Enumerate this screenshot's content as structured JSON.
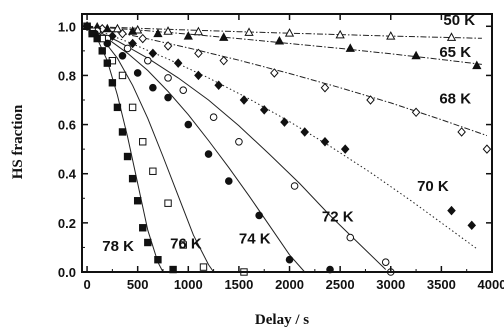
{
  "chart_data": {
    "type": "scatter",
    "title": "",
    "xlabel": "Delay / s",
    "ylabel": "HS fraction",
    "xlim": [
      -50,
      4000
    ],
    "ylim": [
      0.0,
      1.05
    ],
    "x_ticks": [
      "0",
      "500",
      "1000",
      "1500",
      "2000",
      "2500",
      "3000",
      "3500",
      "4000"
    ],
    "y_ticks": [
      "0.0",
      "0.2",
      "0.4",
      "0.6",
      "0.8",
      "1.0"
    ],
    "grid": false,
    "legend": "none",
    "series": [
      {
        "name": "50 K",
        "marker": "open-triangle",
        "line": "dashdot",
        "points": [
          [
            0,
            1.0
          ],
          [
            100,
            0.997
          ],
          [
            300,
            0.99
          ],
          [
            500,
            0.985
          ],
          [
            800,
            0.98
          ],
          [
            1100,
            0.978
          ],
          [
            1600,
            0.975
          ],
          [
            2000,
            0.972
          ],
          [
            2500,
            0.965
          ],
          [
            3000,
            0.96
          ],
          [
            3600,
            0.955
          ]
        ],
        "fit": [
          [
            0,
            1.0
          ],
          [
            500,
            0.992
          ],
          [
            1000,
            0.985
          ],
          [
            1500,
            0.978
          ],
          [
            2000,
            0.972
          ],
          [
            2500,
            0.966
          ],
          [
            3000,
            0.96
          ],
          [
            3500,
            0.955
          ],
          [
            3900,
            0.951
          ]
        ]
      },
      {
        "name": "65 K",
        "marker": "filled-triangle",
        "line": "dashdot",
        "points": [
          [
            0,
            1.0
          ],
          [
            200,
            0.99
          ],
          [
            450,
            0.98
          ],
          [
            700,
            0.97
          ],
          [
            1000,
            0.96
          ],
          [
            1350,
            0.955
          ],
          [
            1900,
            0.94
          ],
          [
            2600,
            0.91
          ],
          [
            3250,
            0.88
          ],
          [
            3850,
            0.84
          ]
        ],
        "fit": [
          [
            0,
            1.0
          ],
          [
            500,
            0.985
          ],
          [
            1000,
            0.968
          ],
          [
            1500,
            0.95
          ],
          [
            2000,
            0.93
          ],
          [
            2500,
            0.91
          ],
          [
            3000,
            0.888
          ],
          [
            3500,
            0.865
          ],
          [
            3900,
            0.845
          ]
        ]
      },
      {
        "name": "68 K",
        "marker": "open-diamond",
        "line": "dashdot",
        "points": [
          [
            0,
            1.0
          ],
          [
            150,
            0.99
          ],
          [
            350,
            0.97
          ],
          [
            550,
            0.95
          ],
          [
            800,
            0.92
          ],
          [
            1100,
            0.89
          ],
          [
            1350,
            0.86
          ],
          [
            1850,
            0.81
          ],
          [
            2350,
            0.75
          ],
          [
            2800,
            0.7
          ],
          [
            3250,
            0.65
          ],
          [
            3700,
            0.57
          ],
          [
            3950,
            0.5
          ]
        ],
        "fit": [
          [
            0,
            1.0
          ],
          [
            500,
            0.958
          ],
          [
            1000,
            0.912
          ],
          [
            1500,
            0.862
          ],
          [
            2000,
            0.808
          ],
          [
            2500,
            0.75
          ],
          [
            3000,
            0.688
          ],
          [
            3500,
            0.62
          ],
          [
            3950,
            0.555
          ]
        ]
      },
      {
        "name": "70 K",
        "marker": "filled-diamond",
        "line": "dotted",
        "points": [
          [
            0,
            1.0
          ],
          [
            100,
            0.99
          ],
          [
            250,
            0.96
          ],
          [
            450,
            0.93
          ],
          [
            650,
            0.89
          ],
          [
            900,
            0.85
          ],
          [
            1100,
            0.8
          ],
          [
            1300,
            0.76
          ],
          [
            1550,
            0.7
          ],
          [
            1750,
            0.66
          ],
          [
            1950,
            0.61
          ],
          [
            2150,
            0.57
          ],
          [
            2350,
            0.53
          ],
          [
            2550,
            0.5
          ],
          [
            3600,
            0.25
          ],
          [
            3800,
            0.19
          ]
        ],
        "fit": [
          [
            0,
            1.0
          ],
          [
            400,
            0.937
          ],
          [
            800,
            0.867
          ],
          [
            1200,
            0.79
          ],
          [
            1600,
            0.705
          ],
          [
            2000,
            0.612
          ],
          [
            2400,
            0.512
          ],
          [
            2800,
            0.405
          ],
          [
            3200,
            0.29
          ],
          [
            3600,
            0.17
          ],
          [
            3850,
            0.095
          ]
        ]
      },
      {
        "name": "72 K",
        "marker": "open-circle",
        "line": "solid",
        "points": [
          [
            0,
            1.0
          ],
          [
            100,
            0.98
          ],
          [
            200,
            0.95
          ],
          [
            400,
            0.91
          ],
          [
            600,
            0.86
          ],
          [
            800,
            0.79
          ],
          [
            950,
            0.74
          ],
          [
            1250,
            0.63
          ],
          [
            1500,
            0.53
          ],
          [
            2050,
            0.35
          ],
          [
            2600,
            0.14
          ],
          [
            2950,
            0.04
          ],
          [
            3000,
            0.0
          ]
        ],
        "fit": [
          [
            0,
            1.0
          ],
          [
            300,
            0.94
          ],
          [
            600,
            0.87
          ],
          [
            900,
            0.79
          ],
          [
            1200,
            0.7
          ],
          [
            1500,
            0.595
          ],
          [
            1800,
            0.48
          ],
          [
            2100,
            0.36
          ],
          [
            2400,
            0.23
          ],
          [
            2700,
            0.11
          ],
          [
            2950,
            0.01
          ]
        ]
      },
      {
        "name": "74 K",
        "marker": "filled-circle",
        "line": "solid",
        "points": [
          [
            0,
            1.0
          ],
          [
            80,
            0.97
          ],
          [
            200,
            0.93
          ],
          [
            350,
            0.88
          ],
          [
            500,
            0.81
          ],
          [
            650,
            0.75
          ],
          [
            800,
            0.71
          ],
          [
            1000,
            0.6
          ],
          [
            1200,
            0.48
          ],
          [
            1400,
            0.37
          ],
          [
            1700,
            0.23
          ],
          [
            2000,
            0.05
          ],
          [
            2400,
            0.01
          ]
        ],
        "fit": [
          [
            0,
            1.0
          ],
          [
            200,
            0.95
          ],
          [
            400,
            0.89
          ],
          [
            600,
            0.82
          ],
          [
            800,
            0.735
          ],
          [
            1000,
            0.64
          ],
          [
            1200,
            0.535
          ],
          [
            1400,
            0.425
          ],
          [
            1600,
            0.31
          ],
          [
            1800,
            0.19
          ],
          [
            2000,
            0.07
          ],
          [
            2150,
            0.0
          ]
        ]
      },
      {
        "name": "76 K",
        "marker": "open-square",
        "line": "solid",
        "points": [
          [
            0,
            1.0
          ],
          [
            50,
            0.98
          ],
          [
            150,
            0.95
          ],
          [
            250,
            0.86
          ],
          [
            350,
            0.8
          ],
          [
            450,
            0.67
          ],
          [
            550,
            0.53
          ],
          [
            650,
            0.41
          ],
          [
            800,
            0.28
          ],
          [
            950,
            0.11
          ],
          [
            1150,
            0.02
          ],
          [
            1550,
            0.0
          ]
        ],
        "fit": [
          [
            0,
            1.0
          ],
          [
            150,
            0.95
          ],
          [
            300,
            0.87
          ],
          [
            450,
            0.76
          ],
          [
            600,
            0.625
          ],
          [
            750,
            0.47
          ],
          [
            900,
            0.31
          ],
          [
            1050,
            0.15
          ],
          [
            1200,
            0.03
          ],
          [
            1250,
            0.0
          ]
        ]
      },
      {
        "name": "78 K",
        "marker": "filled-square",
        "line": "solid",
        "points": [
          [
            0,
            1.0
          ],
          [
            50,
            0.97
          ],
          [
            100,
            0.95
          ],
          [
            150,
            0.9
          ],
          [
            200,
            0.85
          ],
          [
            250,
            0.77
          ],
          [
            300,
            0.67
          ],
          [
            350,
            0.57
          ],
          [
            400,
            0.47
          ],
          [
            450,
            0.38
          ],
          [
            500,
            0.29
          ],
          [
            550,
            0.18
          ],
          [
            600,
            0.12
          ],
          [
            700,
            0.05
          ],
          [
            850,
            0.01
          ]
        ],
        "fit": [
          [
            0,
            1.0
          ],
          [
            100,
            0.95
          ],
          [
            200,
            0.86
          ],
          [
            300,
            0.72
          ],
          [
            400,
            0.55
          ],
          [
            500,
            0.36
          ],
          [
            600,
            0.17
          ],
          [
            700,
            0.04
          ],
          [
            750,
            0.0
          ]
        ]
      }
    ]
  }
}
